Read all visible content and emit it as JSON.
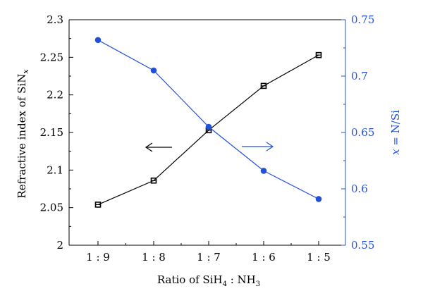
{
  "chart_data": {
    "type": "line",
    "categories": [
      "1 : 9",
      "1 : 8",
      "1 : 7",
      "1 : 6",
      "1 : 5"
    ],
    "xlabel": {
      "pre": "Ratio of SiH",
      "sub1": "4",
      "mid": " : NH",
      "sub2": "3"
    },
    "ylabel_left": {
      "pre": "Refractive index of SiN",
      "sub": "x"
    },
    "ylabel_right": {
      "var": "x",
      "rest": " = N/Si"
    },
    "ylim_left": [
      2.0,
      2.3
    ],
    "ylim_right": [
      0.55,
      0.75
    ],
    "yticks_left": [
      "2",
      "2.05",
      "2.1",
      "2.15",
      "2.2",
      "2.25",
      "2.3"
    ],
    "yticks_right": [
      "0.55",
      "0.6",
      "0.65",
      "0.7",
      "0.75"
    ],
    "series": [
      {
        "axis": "left",
        "marker": "square",
        "color": "#000000",
        "values": [
          2.054,
          2.086,
          2.153,
          2.212,
          2.253
        ]
      },
      {
        "axis": "right",
        "marker": "circle",
        "color": "#2350d8",
        "values": [
          0.732,
          0.705,
          0.655,
          0.616,
          0.591
        ]
      }
    ],
    "annotations": [
      {
        "type": "arrow",
        "direction": "left",
        "color": "#000000",
        "points_to": "left"
      },
      {
        "type": "arrow",
        "direction": "right",
        "color": "#2350d8",
        "points_to": "right"
      }
    ],
    "grid": false
  }
}
